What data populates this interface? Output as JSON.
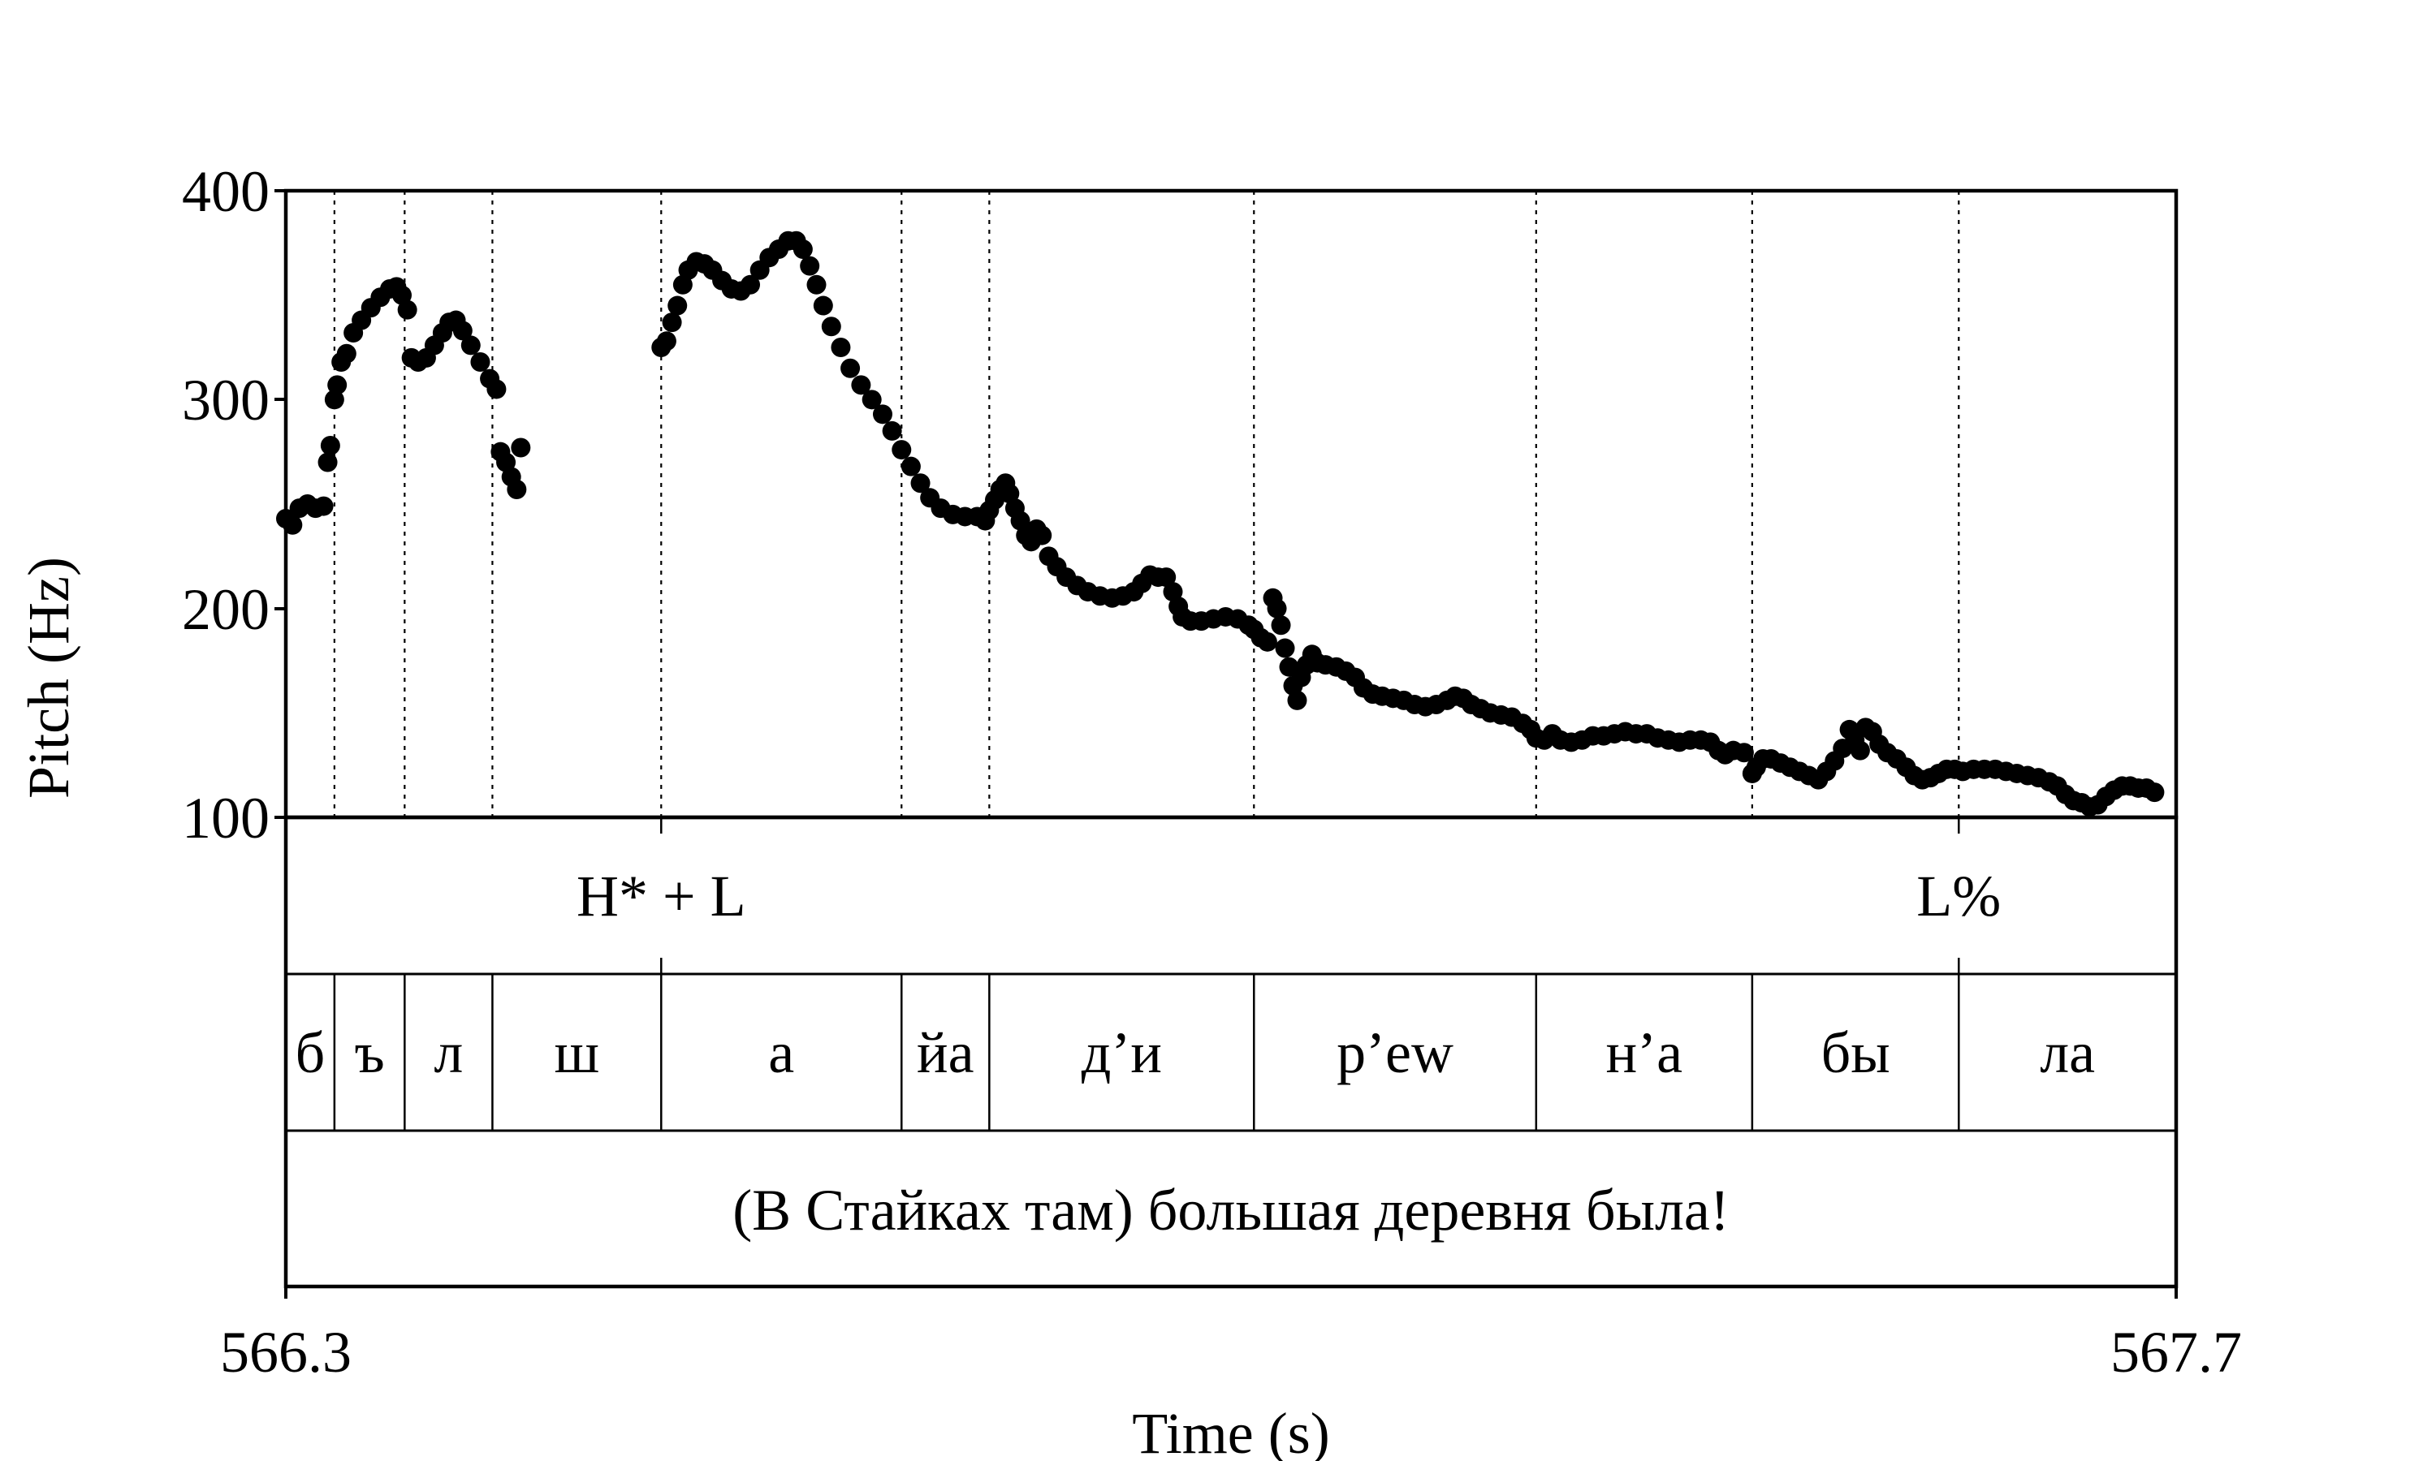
{
  "chart_data": {
    "type": "scatter",
    "title": "",
    "xlabel": "Time (s)",
    "ylabel": "Pitch (Hz)",
    "xlim": [
      566.3,
      567.7
    ],
    "ylim": [
      100,
      400
    ],
    "x_tick_labels": [
      "566.3",
      "567.7"
    ],
    "y_ticks": [
      100,
      200,
      300,
      400
    ],
    "y_tick_labels": [
      "100",
      "200",
      "300",
      "400"
    ],
    "grid": false,
    "legend": "none",
    "marker_color": "#000000",
    "segment_boundaries": [
      566.336,
      566.388,
      566.453,
      566.578,
      566.756,
      566.821,
      567.017,
      567.226,
      567.386,
      567.539
    ],
    "tiers": {
      "tones": [
        {
          "label": "H* + L",
          "time": 566.578
        },
        {
          "label": "L%",
          "time": 567.539
        }
      ],
      "segments": [
        {
          "label": "б",
          "start": 566.3,
          "end": 566.336
        },
        {
          "label": "ъ",
          "start": 566.336,
          "end": 566.388
        },
        {
          "label": "л",
          "start": 566.388,
          "end": 566.453
        },
        {
          "label": "ш",
          "start": 566.453,
          "end": 566.578
        },
        {
          "label": "а",
          "start": 566.578,
          "end": 566.756
        },
        {
          "label": "йа",
          "start": 566.756,
          "end": 566.821
        },
        {
          "label": "д’и",
          "start": 566.821,
          "end": 567.017
        },
        {
          "label": "р’ew",
          "start": 567.017,
          "end": 567.226
        },
        {
          "label": "н’а",
          "start": 567.226,
          "end": 567.386
        },
        {
          "label": "бы",
          "start": 567.386,
          "end": 567.539
        },
        {
          "label": "ла",
          "start": 567.539,
          "end": 567.7
        }
      ],
      "sentence": "(В Стайках там) большая деревня была!"
    },
    "series": [
      {
        "points": [
          [
            566.3,
            243
          ],
          [
            566.305,
            240
          ],
          [
            566.31,
            248
          ],
          [
            566.316,
            250
          ],
          [
            566.322,
            248
          ],
          [
            566.328,
            249
          ],
          [
            566.331,
            270
          ],
          [
            566.333,
            278
          ],
          [
            566.336,
            300
          ],
          [
            566.338,
            307
          ],
          [
            566.341,
            318
          ],
          [
            566.345,
            322
          ],
          [
            566.35,
            332
          ],
          [
            566.356,
            338
          ],
          [
            566.363,
            344
          ],
          [
            566.37,
            349
          ],
          [
            566.377,
            353
          ],
          [
            566.382,
            354
          ],
          [
            566.386,
            350
          ],
          [
            566.39,
            343
          ],
          [
            566.393,
            320
          ],
          [
            566.398,
            318
          ],
          [
            566.404,
            320
          ],
          [
            566.41,
            326
          ],
          [
            566.416,
            332
          ],
          [
            566.421,
            337
          ],
          [
            566.426,
            338
          ],
          [
            566.431,
            333
          ],
          [
            566.437,
            326
          ],
          [
            566.444,
            318
          ],
          [
            566.451,
            310
          ],
          [
            566.456,
            305
          ],
          [
            566.459,
            275
          ],
          [
            566.463,
            270
          ],
          [
            566.467,
            263
          ],
          [
            566.471,
            257
          ],
          [
            566.474,
            277
          ],
          [
            566.578,
            325
          ],
          [
            566.582,
            328
          ],
          [
            566.586,
            337
          ],
          [
            566.59,
            345
          ],
          [
            566.594,
            355
          ],
          [
            566.598,
            362
          ],
          [
            566.604,
            366
          ],
          [
            566.61,
            365
          ],
          [
            566.616,
            362
          ],
          [
            566.623,
            357
          ],
          [
            566.63,
            353
          ],
          [
            566.637,
            352
          ],
          [
            566.644,
            355
          ],
          [
            566.651,
            362
          ],
          [
            566.658,
            368
          ],
          [
            566.665,
            372
          ],
          [
            566.672,
            376
          ],
          [
            566.678,
            376
          ],
          [
            566.683,
            372
          ],
          [
            566.688,
            364
          ],
          [
            566.693,
            355
          ],
          [
            566.698,
            345
          ],
          [
            566.704,
            335
          ],
          [
            566.711,
            325
          ],
          [
            566.718,
            315
          ],
          [
            566.726,
            307
          ],
          [
            566.734,
            300
          ],
          [
            566.742,
            293
          ],
          [
            566.749,
            285
          ],
          [
            566.756,
            276
          ],
          [
            566.763,
            268
          ],
          [
            566.77,
            260
          ],
          [
            566.777,
            253
          ],
          [
            566.785,
            248
          ],
          [
            566.794,
            245
          ],
          [
            566.803,
            244
          ],
          [
            566.812,
            244
          ],
          [
            566.818,
            242
          ],
          [
            566.821,
            247
          ],
          [
            566.825,
            252
          ],
          [
            566.829,
            257
          ],
          [
            566.833,
            260
          ],
          [
            566.836,
            255
          ],
          [
            566.84,
            248
          ],
          [
            566.844,
            242
          ],
          [
            566.848,
            235
          ],
          [
            566.852,
            232
          ],
          [
            566.856,
            238
          ],
          [
            566.86,
            235
          ],
          [
            566.865,
            225
          ],
          [
            566.871,
            220
          ],
          [
            566.878,
            215
          ],
          [
            566.886,
            211
          ],
          [
            566.894,
            208
          ],
          [
            566.903,
            206
          ],
          [
            566.912,
            205
          ],
          [
            566.92,
            206
          ],
          [
            566.928,
            208
          ],
          [
            566.934,
            212
          ],
          [
            566.94,
            216
          ],
          [
            566.946,
            215
          ],
          [
            566.952,
            215
          ],
          [
            566.957,
            208
          ],
          [
            566.961,
            201
          ],
          [
            566.964,
            196
          ],
          [
            566.97,
            194
          ],
          [
            566.978,
            194
          ],
          [
            566.987,
            195
          ],
          [
            566.996,
            196
          ],
          [
            567.005,
            195
          ],
          [
            567.013,
            192
          ],
          [
            567.017,
            190
          ],
          [
            567.022,
            186
          ],
          [
            567.027,
            184
          ],
          [
            567.031,
            205
          ],
          [
            567.034,
            200
          ],
          [
            567.037,
            192
          ],
          [
            567.04,
            181
          ],
          [
            567.043,
            172
          ],
          [
            567.046,
            163
          ],
          [
            567.049,
            156
          ],
          [
            567.052,
            167
          ],
          [
            567.056,
            173
          ],
          [
            567.06,
            178
          ],
          [
            567.064,
            174
          ],
          [
            567.07,
            173
          ],
          [
            567.078,
            172
          ],
          [
            567.085,
            170
          ],
          [
            567.092,
            167
          ],
          [
            567.098,
            162
          ],
          [
            567.105,
            159
          ],
          [
            567.112,
            158
          ],
          [
            567.12,
            157
          ],
          [
            567.128,
            156
          ],
          [
            567.136,
            154
          ],
          [
            567.144,
            153
          ],
          [
            567.152,
            154
          ],
          [
            567.16,
            156
          ],
          [
            567.166,
            158
          ],
          [
            567.172,
            157
          ],
          [
            567.178,
            154
          ],
          [
            567.185,
            152
          ],
          [
            567.192,
            150
          ],
          [
            567.2,
            149
          ],
          [
            567.208,
            148
          ],
          [
            567.216,
            145
          ],
          [
            567.222,
            142
          ],
          [
            567.226,
            138
          ],
          [
            567.232,
            137
          ],
          [
            567.238,
            140
          ],
          [
            567.244,
            137
          ],
          [
            567.252,
            136
          ],
          [
            567.26,
            137
          ],
          [
            567.268,
            139
          ],
          [
            567.276,
            139
          ],
          [
            567.284,
            140
          ],
          [
            567.292,
            141
          ],
          [
            567.3,
            140
          ],
          [
            567.308,
            140
          ],
          [
            567.316,
            138
          ],
          [
            567.324,
            137
          ],
          [
            567.332,
            136
          ],
          [
            567.34,
            137
          ],
          [
            567.348,
            137
          ],
          [
            567.355,
            136
          ],
          [
            567.361,
            132
          ],
          [
            567.366,
            130
          ],
          [
            567.372,
            132
          ],
          [
            567.38,
            131
          ],
          [
            567.386,
            121
          ],
          [
            567.389,
            124
          ],
          [
            567.394,
            128
          ],
          [
            567.4,
            128
          ],
          [
            567.407,
            126
          ],
          [
            567.414,
            124
          ],
          [
            567.421,
            122
          ],
          [
            567.428,
            120
          ],
          [
            567.435,
            118
          ],
          [
            567.441,
            122
          ],
          [
            567.447,
            127
          ],
          [
            567.453,
            133
          ],
          [
            567.458,
            142
          ],
          [
            567.462,
            137
          ],
          [
            567.466,
            132
          ],
          [
            567.47,
            143
          ],
          [
            567.475,
            141
          ],
          [
            567.48,
            135
          ],
          [
            567.486,
            131
          ],
          [
            567.493,
            128
          ],
          [
            567.5,
            124
          ],
          [
            567.506,
            120
          ],
          [
            567.512,
            118
          ],
          [
            567.518,
            119
          ],
          [
            567.524,
            121
          ],
          [
            567.53,
            123
          ],
          [
            567.536,
            123
          ],
          [
            567.542,
            122
          ],
          [
            567.55,
            123
          ],
          [
            567.558,
            123
          ],
          [
            567.566,
            123
          ],
          [
            567.574,
            122
          ],
          [
            567.582,
            121
          ],
          [
            567.59,
            120
          ],
          [
            567.598,
            119
          ],
          [
            567.606,
            117
          ],
          [
            567.612,
            115
          ],
          [
            567.618,
            111
          ],
          [
            567.624,
            108
          ],
          [
            567.63,
            107
          ],
          [
            567.636,
            105
          ],
          [
            567.642,
            106
          ],
          [
            567.648,
            110
          ],
          [
            567.654,
            113
          ],
          [
            567.66,
            115
          ],
          [
            567.666,
            115
          ],
          [
            567.672,
            114
          ],
          [
            567.678,
            114
          ],
          [
            567.684,
            112
          ]
        ]
      }
    ]
  }
}
